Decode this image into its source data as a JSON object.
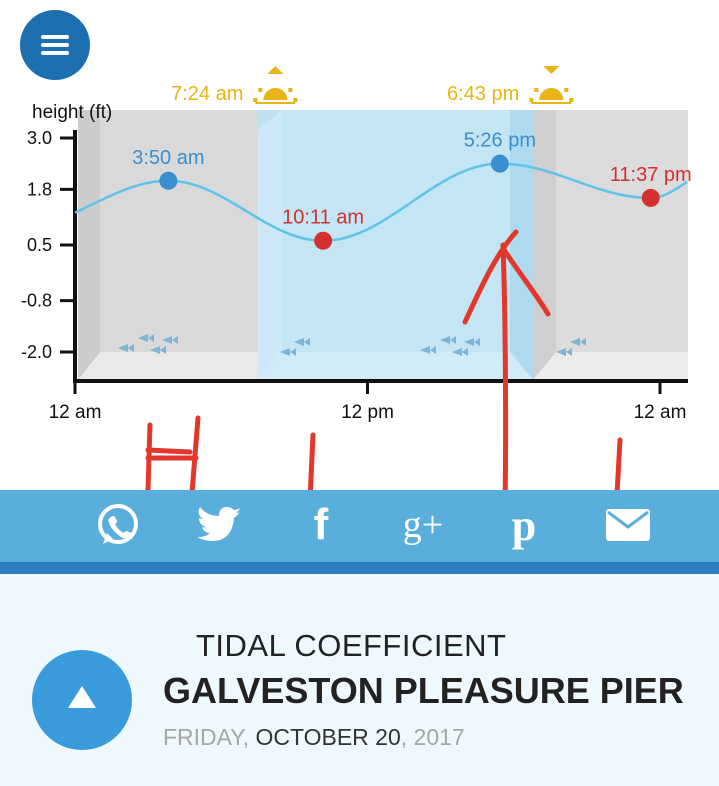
{
  "chart_data": {
    "type": "line",
    "ylabel": "height (ft)",
    "yticks": [
      "3.0",
      "1.8",
      "0.5",
      "-0.8",
      "-2.0"
    ],
    "ylim": [
      -2.6,
      3.0
    ],
    "xticks": [
      "12 am",
      "12 pm",
      "12 am"
    ],
    "x_hours": [
      0,
      12,
      24
    ],
    "sun": [
      {
        "label": "7:24 am",
        "type": "sunrise",
        "hour": 7.4
      },
      {
        "label": "6:43 pm",
        "type": "sunset",
        "hour": 18.72
      }
    ],
    "tides": [
      {
        "time": "3:50 am",
        "hour": 3.83,
        "height": 2.0,
        "kind": "high",
        "color": "#3a8fd0"
      },
      {
        "time": "10:11 am",
        "hour": 10.18,
        "height": 0.6,
        "kind": "low",
        "color": "#d43030"
      },
      {
        "time": "5:26 pm",
        "hour": 17.43,
        "height": 2.4,
        "kind": "high",
        "color": "#3a8fd0"
      },
      {
        "time": "11:37 pm",
        "hour": 23.62,
        "height": 1.6,
        "kind": "low",
        "color": "#d43030"
      }
    ]
  },
  "annotations": [
    "H",
    "L",
    "L"
  ],
  "share_icons": [
    "whatsapp-icon",
    "twitter-icon",
    "facebook-icon",
    "google-plus-icon",
    "pinterest-icon",
    "mail-icon"
  ],
  "facebook_glyph": "f",
  "gplus_glyph": "g+",
  "pinterest_glyph": "p",
  "section": {
    "label": "TIDAL COEFFICIENT",
    "place": "GALVESTON PLEASURE PIER",
    "weekday": "FRIDAY,",
    "monthday": "OCTOBER 20",
    "year": ", 2017"
  },
  "colors": {
    "curve": "#5fc3ea",
    "high": "#3a8fd0",
    "low": "#d43030",
    "sun": "#e8b418",
    "share_bar": "#5aaedc",
    "annotation": "#e2372b"
  }
}
